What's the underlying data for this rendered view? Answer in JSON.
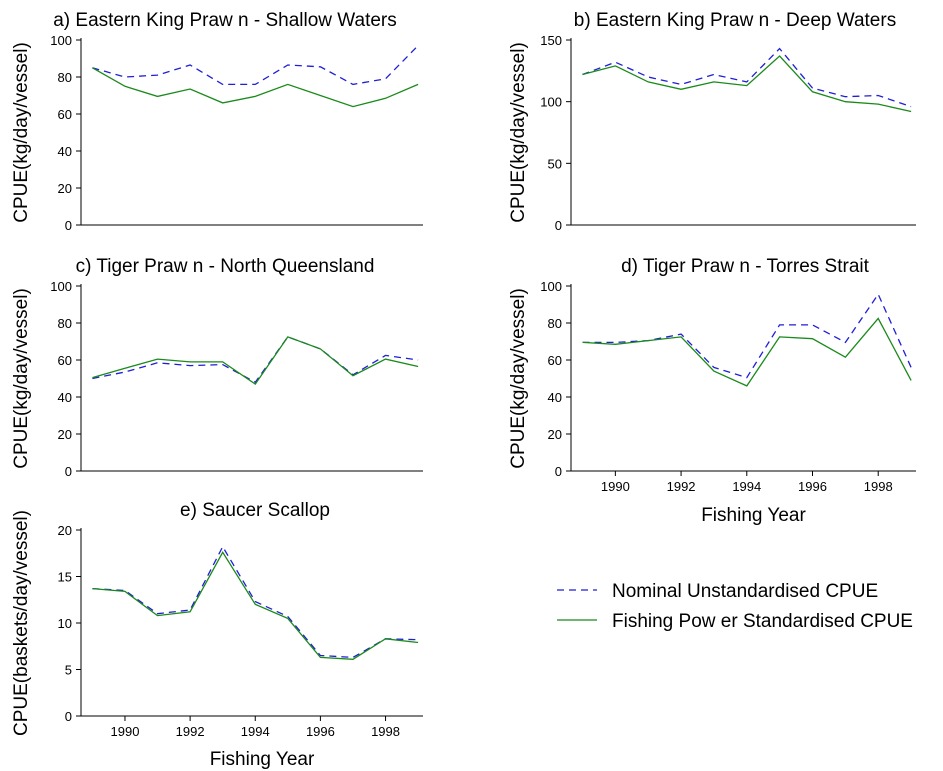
{
  "chart_data": [
    {
      "type": "line",
      "title": "a) Eastern King Praw n - Shallow  Waters",
      "ylabel": "CPUE(kg/day/vessel)",
      "xlabel": "",
      "x": [
        1989,
        1990,
        1991,
        1992,
        1993,
        1994,
        1995,
        1996,
        1997,
        1998,
        1999
      ],
      "ylim": [
        0,
        100
      ],
      "yticks": [
        0,
        20,
        40,
        60,
        80,
        100
      ],
      "xticks": [],
      "series": [
        {
          "name": "Nominal Unstandardised CPUE",
          "color": "#1f1fd6",
          "dash": true,
          "values": [
            85,
            80,
            81,
            86.5,
            76,
            76,
            86.5,
            85.5,
            76,
            79,
            97
          ]
        },
        {
          "name": "Fishing Pow er Standardised CPUE",
          "color": "#1a8a1a",
          "dash": false,
          "values": [
            85,
            75,
            69.5,
            73.5,
            66,
            69.5,
            76,
            70,
            64,
            68.5,
            76
          ]
        }
      ]
    },
    {
      "type": "line",
      "title": "b) Eastern King Praw n - Deep Waters",
      "ylabel": "CPUE(kg/day/vessel)",
      "xlabel": "",
      "x": [
        1989,
        1990,
        1991,
        1992,
        1993,
        1994,
        1995,
        1996,
        1997,
        1998,
        1999
      ],
      "ylim": [
        0,
        150
      ],
      "yticks": [
        0,
        50,
        100,
        150
      ],
      "xticks": [],
      "series": [
        {
          "name": "Nominal Unstandardised CPUE",
          "color": "#1f1fd6",
          "dash": true,
          "values": [
            122,
            132,
            120,
            114,
            122,
            116,
            143,
            111,
            104,
            105,
            96
          ]
        },
        {
          "name": "Fishing Pow er Standardised CPUE",
          "color": "#1a8a1a",
          "dash": false,
          "values": [
            122,
            129,
            116,
            110,
            116,
            113,
            137,
            108,
            100,
            98,
            92
          ]
        }
      ]
    },
    {
      "type": "line",
      "title": "c) Tiger Praw n - North Queensland",
      "ylabel": "CPUE(kg/day/vessel)",
      "xlabel": "",
      "x": [
        1989,
        1990,
        1991,
        1992,
        1993,
        1994,
        1995,
        1996,
        1997,
        1998,
        1999
      ],
      "ylim": [
        0,
        100
      ],
      "yticks": [
        0,
        20,
        40,
        60,
        80,
        100
      ],
      "xticks": [],
      "series": [
        {
          "name": "Nominal Unstandardised CPUE",
          "color": "#1f1fd6",
          "dash": true,
          "values": [
            50,
            53.5,
            58.5,
            57,
            57.5,
            48,
            72.5,
            66,
            52,
            62.5,
            60
          ]
        },
        {
          "name": "Fishing Pow er Standardised CPUE",
          "color": "#1a8a1a",
          "dash": false,
          "values": [
            50.5,
            55.5,
            60.5,
            59,
            59,
            47,
            72.5,
            66,
            51.5,
            60.5,
            56.5
          ]
        }
      ]
    },
    {
      "type": "line",
      "title": "d) Tiger Praw n - Torres Strait",
      "ylabel": "CPUE(kg/day/vessel)",
      "xlabel": "Fishing Year",
      "x": [
        1989,
        1990,
        1991,
        1992,
        1993,
        1994,
        1995,
        1996,
        1997,
        1998,
        1999
      ],
      "ylim": [
        0,
        100
      ],
      "yticks": [
        0,
        20,
        40,
        60,
        80,
        100
      ],
      "xticks": [
        1990,
        1992,
        1994,
        1996,
        1998
      ],
      "series": [
        {
          "name": "Nominal Unstandardised CPUE",
          "color": "#1f1fd6",
          "dash": true,
          "values": [
            69.5,
            69.5,
            70.5,
            74,
            56,
            50.5,
            79,
            79,
            69.5,
            95.5,
            56
          ]
        },
        {
          "name": "Fishing Pow er Standardised CPUE",
          "color": "#1a8a1a",
          "dash": false,
          "values": [
            69.5,
            68.5,
            70.5,
            72.5,
            54,
            46,
            72.5,
            71.5,
            61.5,
            82.5,
            49
          ]
        }
      ]
    },
    {
      "type": "line",
      "title": "e) Saucer Scallop",
      "ylabel": "CPUE(baskets/day/vessel)",
      "xlabel": "Fishing Year",
      "x": [
        1989,
        1990,
        1991,
        1992,
        1993,
        1994,
        1995,
        1996,
        1997,
        1998,
        1999
      ],
      "ylim": [
        0,
        20
      ],
      "yticks": [
        0,
        5,
        10,
        15,
        20
      ],
      "xticks": [
        1990,
        1992,
        1994,
        1996,
        1998
      ],
      "series": [
        {
          "name": "Nominal Unstandardised CPUE",
          "color": "#1f1fd6",
          "dash": true,
          "values": [
            13.7,
            13.5,
            11,
            11.4,
            18.2,
            12.3,
            10.7,
            6.5,
            6.3,
            8.3,
            8.2
          ]
        },
        {
          "name": "Fishing Pow er Standardised CPUE",
          "color": "#1a8a1a",
          "dash": false,
          "values": [
            13.7,
            13.4,
            10.8,
            11.2,
            17.6,
            12,
            10.5,
            6.3,
            6.1,
            8.3,
            7.9
          ]
        }
      ]
    }
  ],
  "legend": {
    "placement": "lower-right",
    "items": [
      {
        "label": "Nominal Unstandardised CPUE",
        "color": "#1f1fd6",
        "dash": true
      },
      {
        "label": "Fishing Pow er Standardised CPUE",
        "color": "#1a8a1a",
        "dash": false
      }
    ]
  }
}
